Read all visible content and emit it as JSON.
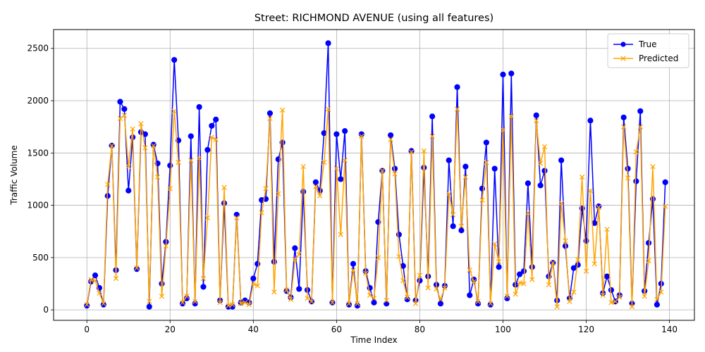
{
  "chart_data": {
    "type": "line",
    "title": "Street: RICHMOND AVENUE (using all features)",
    "xlabel": "Time Index",
    "ylabel": "Traffic Volume",
    "xlim": [
      -8,
      146
    ],
    "ylim": [
      -100,
      2680
    ],
    "xticks": [
      0,
      20,
      40,
      60,
      80,
      100,
      120,
      140
    ],
    "yticks": [
      0,
      500,
      1000,
      1500,
      2000,
      2500
    ],
    "grid": true,
    "legend_position": "top-right",
    "series": [
      {
        "name": "True",
        "color": "#0000ff",
        "marker": "circle",
        "values": [
          40,
          270,
          330,
          210,
          50,
          1090,
          1570,
          380,
          1990,
          1920,
          1140,
          1650,
          390,
          1700,
          1680,
          30,
          1580,
          1400,
          250,
          650,
          1380,
          2390,
          1620,
          60,
          110,
          1660,
          60,
          1940,
          220,
          1530,
          1760,
          1820,
          90,
          1020,
          30,
          30,
          910,
          70,
          90,
          70,
          300,
          440,
          1050,
          1060,
          1880,
          460,
          1440,
          1600,
          180,
          120,
          590,
          200,
          1130,
          190,
          80,
          1220,
          1140,
          1690,
          2550,
          70,
          1680,
          1250,
          1710,
          50,
          440,
          40,
          1680,
          370,
          210,
          70,
          840,
          1330,
          60,
          1670,
          1350,
          720,
          420,
          100,
          1520,
          90,
          280,
          1360,
          320,
          1850,
          240,
          60,
          230,
          1430,
          800,
          2130,
          760,
          1370,
          140,
          290,
          60,
          1160,
          1600,
          50,
          1350,
          410,
          2250,
          110,
          2260,
          240,
          340,
          370,
          1210,
          410,
          1860,
          1190,
          1330,
          320,
          450,
          90,
          1430,
          610,
          110,
          400,
          430,
          970,
          660,
          1810,
          830,
          990,
          160,
          320,
          190,
          80,
          140,
          1840,
          1350,
          60,
          1230,
          1900,
          180,
          640,
          1060,
          50,
          250,
          1220
        ]
      },
      {
        "name": "Predicted",
        "color": "#ffa500",
        "marker": "x",
        "values": [
          50,
          290,
          280,
          160,
          60,
          1200,
          1570,
          300,
          1830,
          1860,
          1370,
          1730,
          400,
          1780,
          1550,
          80,
          1570,
          1270,
          130,
          610,
          1160,
          1900,
          1410,
          70,
          130,
          1430,
          80,
          1450,
          300,
          880,
          1650,
          1630,
          70,
          1170,
          40,
          50,
          880,
          60,
          70,
          50,
          250,
          230,
          930,
          1160,
          1830,
          170,
          1110,
          1910,
          190,
          100,
          480,
          530,
          1370,
          110,
          80,
          1180,
          1090,
          1410,
          1920,
          70,
          1350,
          720,
          1430,
          60,
          380,
          60,
          1660,
          350,
          140,
          110,
          500,
          1330,
          90,
          1630,
          1300,
          510,
          280,
          120,
          1510,
          60,
          330,
          1520,
          210,
          1660,
          200,
          100,
          210,
          1110,
          910,
          1920,
          800,
          1270,
          380,
          270,
          80,
          1050,
          1410,
          60,
          630,
          460,
          1720,
          130,
          1850,
          150,
          260,
          250,
          930,
          290,
          1810,
          1400,
          1560,
          240,
          450,
          30,
          1020,
          660,
          80,
          170,
          480,
          1270,
          370,
          1140,
          440,
          980,
          140,
          770,
          70,
          80,
          120,
          1750,
          1260,
          30,
          1510,
          1750,
          130,
          470,
          1370,
          100,
          170,
          990
        ]
      }
    ]
  }
}
